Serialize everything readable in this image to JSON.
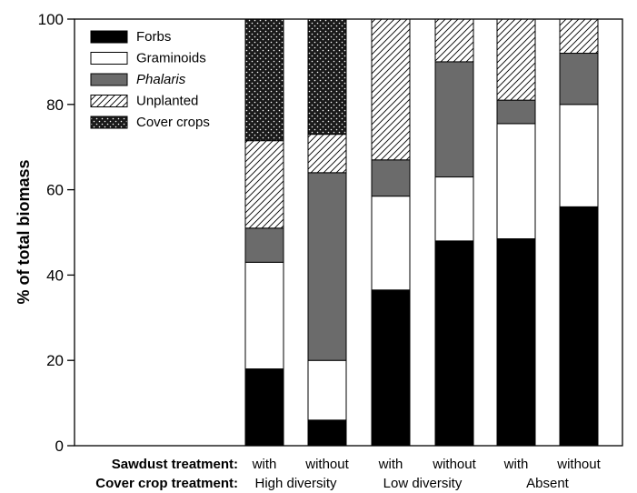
{
  "chart_data": {
    "type": "bar",
    "stacked": true,
    "ylabel": "% of total biomass",
    "ylim": [
      0,
      100
    ],
    "yticks": [
      0,
      20,
      40,
      60,
      80,
      100
    ],
    "grid": false,
    "legend_position": "top-left",
    "series": [
      {
        "name": "Forbs",
        "italic": false,
        "pattern": "solid-black"
      },
      {
        "name": "Graminoids",
        "italic": false,
        "pattern": "white"
      },
      {
        "name": "Phalaris",
        "italic": true,
        "pattern": "solid-gray"
      },
      {
        "name": "Unplanted",
        "italic": false,
        "pattern": "diagonal-hatch"
      },
      {
        "name": "Cover crops",
        "italic": false,
        "pattern": "dotted-dark"
      }
    ],
    "row_labels": [
      "Sawdust treatment:",
      "Cover crop treatment:"
    ],
    "groups": [
      "High diversity",
      "Low diversity",
      "Absent"
    ],
    "bars": [
      {
        "sawdust": "with",
        "group": 0,
        "values": [
          18,
          25,
          8,
          20.5,
          28.5
        ]
      },
      {
        "sawdust": "without",
        "group": 0,
        "values": [
          6,
          14,
          44,
          9,
          27
        ]
      },
      {
        "sawdust": "with",
        "group": 1,
        "values": [
          36.5,
          22,
          8.5,
          33,
          0
        ]
      },
      {
        "sawdust": "without",
        "group": 1,
        "values": [
          48,
          15,
          27,
          10,
          0
        ]
      },
      {
        "sawdust": "with",
        "group": 2,
        "values": [
          48.5,
          27,
          5.5,
          19,
          0
        ]
      },
      {
        "sawdust": "without",
        "group": 2,
        "values": [
          56,
          24,
          12,
          8,
          0
        ]
      }
    ]
  }
}
